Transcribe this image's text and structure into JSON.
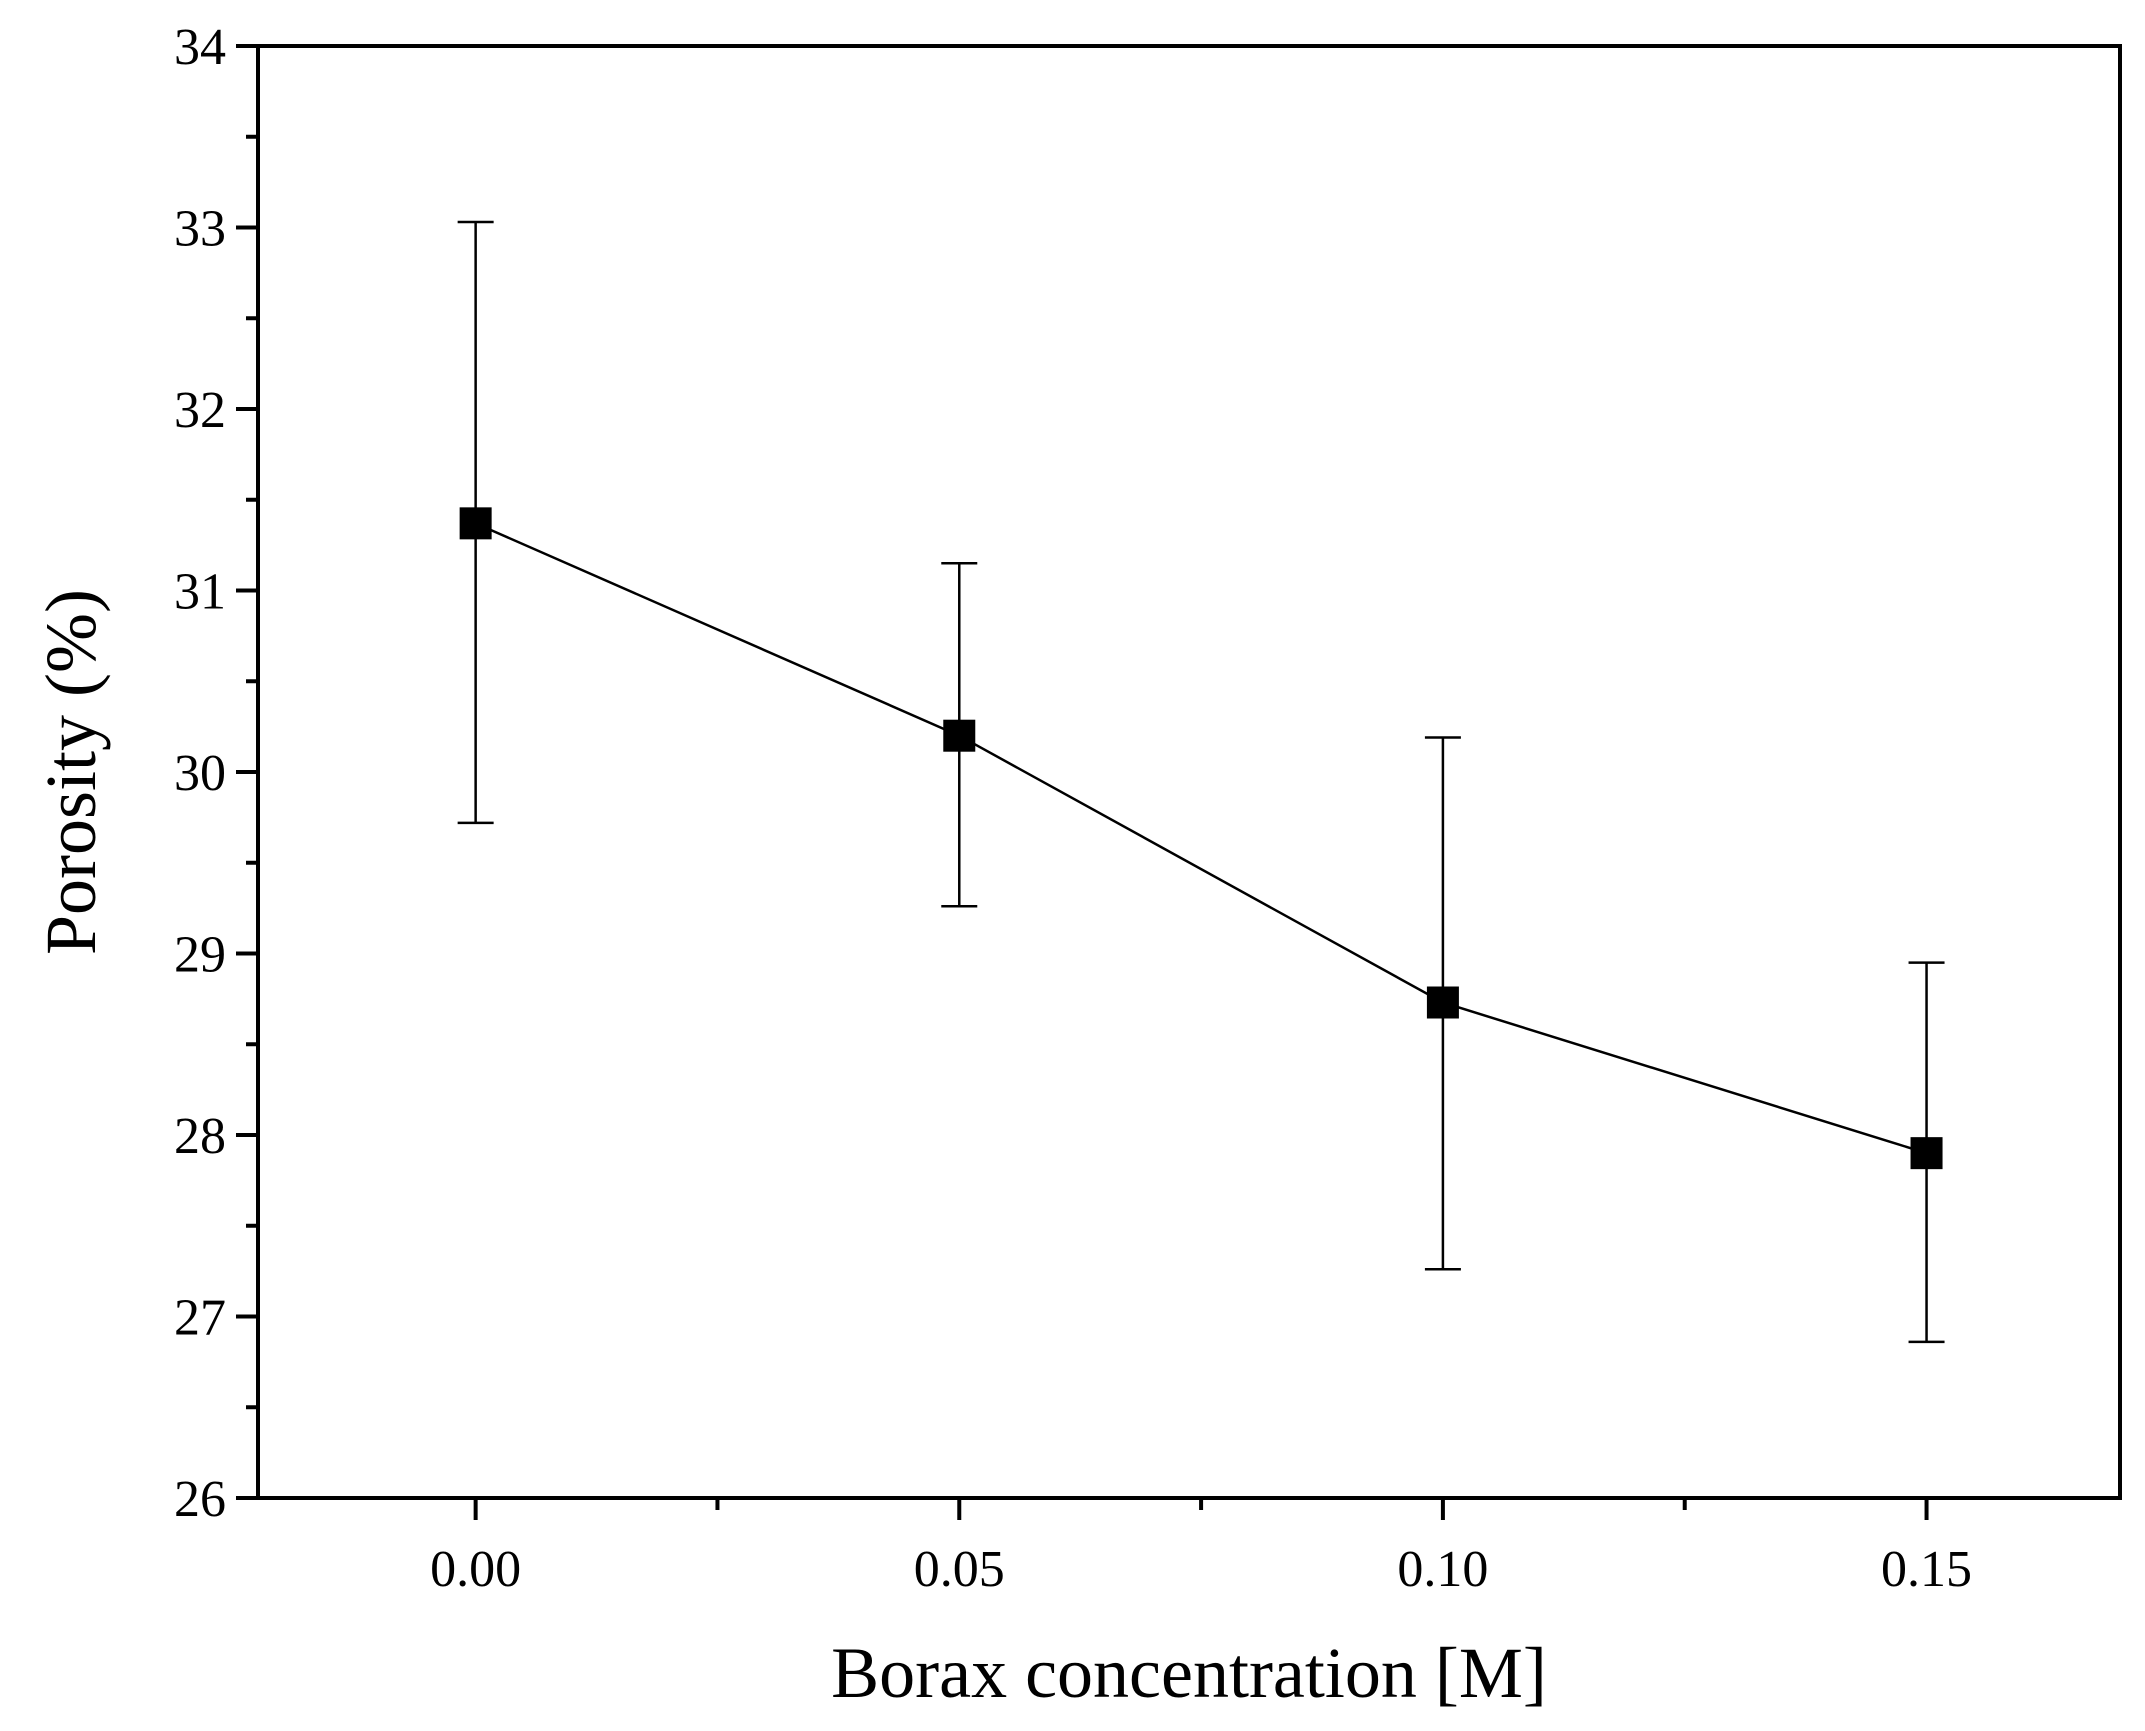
{
  "chart_data": {
    "type": "line",
    "xlabel": "Borax concentration [M]",
    "ylabel": "Porosity (%)",
    "xlim": [
      -0.0225,
      0.17
    ],
    "ylim": [
      26,
      34
    ],
    "xticks": [
      "0.00",
      "0.05",
      "0.10",
      "0.15"
    ],
    "yticks": [
      "26",
      "27",
      "28",
      "29",
      "30",
      "31",
      "32",
      "33",
      "34"
    ],
    "grid": false,
    "series": [
      {
        "x": [
          0.0,
          0.05,
          0.1,
          0.15
        ],
        "y": [
          31.37,
          30.2,
          28.73,
          27.9
        ],
        "yerr_low": [
          29.72,
          29.26,
          27.26,
          26.86
        ],
        "yerr_high": [
          33.03,
          31.15,
          30.19,
          28.95
        ],
        "marker": "square",
        "color": "#000000"
      }
    ]
  }
}
